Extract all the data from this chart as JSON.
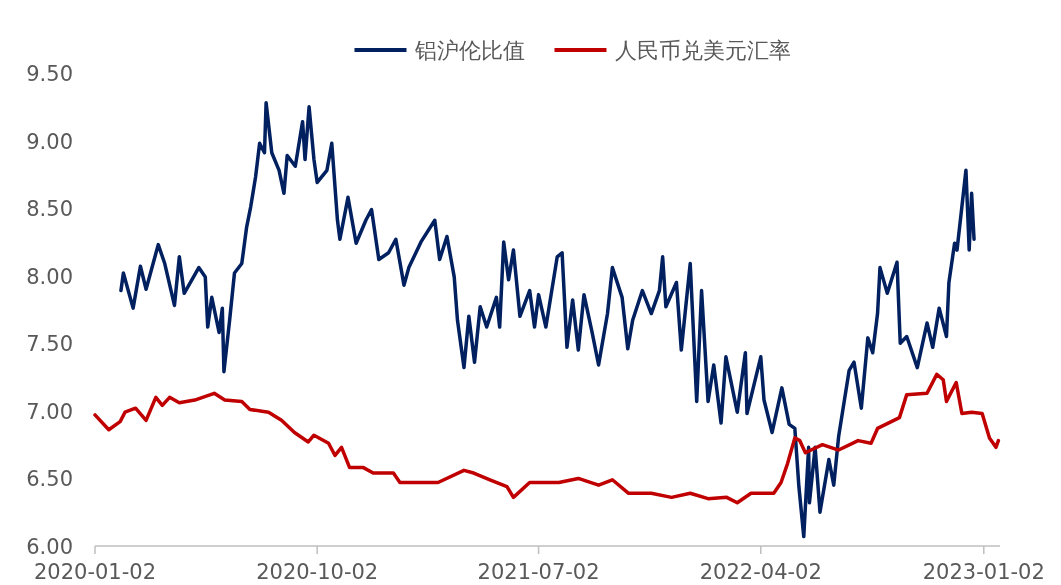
{
  "chart_data": {
    "type": "line",
    "legend": "top",
    "grid": false,
    "marker": "none",
    "line_style": "solid",
    "xlim": [
      "2020-01-02",
      "2023-01-22"
    ],
    "xticks": [
      {
        "value": "2020-01-02",
        "label": "2020-01-02"
      },
      {
        "value": "2020-10-02",
        "label": "2020-10-02"
      },
      {
        "value": "2021-07-02",
        "label": "2021-07-02"
      },
      {
        "value": "2022-04-02",
        "label": "2022-04-02"
      },
      {
        "value": "2023-01-02",
        "label": "2023-01-02"
      }
    ],
    "ylim": [
      6,
      9.5
    ],
    "yticks": [
      {
        "value": 6,
        "label": "6.00"
      },
      {
        "value": 6.5,
        "label": "6.50"
      },
      {
        "value": 7,
        "label": "7.00"
      },
      {
        "value": 7.5,
        "label": "7.50"
      },
      {
        "value": 8,
        "label": "8.00"
      },
      {
        "value": 8.5,
        "label": "8.50"
      },
      {
        "value": 9,
        "label": "9.00"
      },
      {
        "value": 9.5,
        "label": "9.50"
      }
    ],
    "series": [
      {
        "name": "铝沪伦比值",
        "color": "#002060",
        "x": [
          "2020-02-03",
          "2020-02-06",
          "2020-02-18",
          "2020-02-27",
          "2020-03-05",
          "2020-03-20",
          "2020-03-28",
          "2020-04-09",
          "2020-04-15",
          "2020-04-21",
          "2020-05-09",
          "2020-05-17",
          "2020-05-20",
          "2020-05-25",
          "2020-06-03",
          "2020-06-07",
          "2020-06-09",
          "2020-06-16",
          "2020-06-22",
          "2020-07-01",
          "2020-07-07",
          "2020-07-12",
          "2020-07-18",
          "2020-07-23",
          "2020-07-29",
          "2020-07-31",
          "2020-08-07",
          "2020-08-16",
          "2020-08-22",
          "2020-08-26",
          "2020-09-05",
          "2020-09-14",
          "2020-09-17",
          "2020-09-22",
          "2020-09-28",
          "2020-10-02",
          "2020-10-14",
          "2020-10-20",
          "2020-10-27",
          "2020-10-30",
          "2020-11-09",
          "2020-11-19",
          "2020-12-01",
          "2020-12-08",
          "2020-12-17",
          "2020-12-29",
          "2021-01-07",
          "2021-01-17",
          "2021-01-23",
          "2021-02-07",
          "2021-02-24",
          "2021-03-02",
          "2021-03-11",
          "2021-03-20",
          "2021-03-24",
          "2021-04-01",
          "2021-04-07",
          "2021-04-14",
          "2021-04-21",
          "2021-04-29",
          "2021-05-11",
          "2021-05-15",
          "2021-05-20",
          "2021-05-26",
          "2021-06-01",
          "2021-06-09",
          "2021-06-21",
          "2021-06-27",
          "2021-07-02",
          "2021-07-11",
          "2021-07-25",
          "2021-07-31",
          "2021-08-06",
          "2021-08-13",
          "2021-08-20",
          "2021-08-27",
          "2021-09-06",
          "2021-09-14",
          "2021-09-25",
          "2021-10-01",
          "2021-10-13",
          "2021-10-20",
          "2021-10-26",
          "2021-11-07",
          "2021-11-18",
          "2021-11-28",
          "2021-12-02",
          "2021-12-06",
          "2021-12-19",
          "2021-12-25",
          "2022-01-05",
          "2022-01-13",
          "2022-01-19",
          "2022-01-27",
          "2022-02-03",
          "2022-02-12",
          "2022-02-18",
          "2022-03-04",
          "2022-03-14",
          "2022-03-16",
          "2022-04-02",
          "2022-04-06",
          "2022-04-16",
          "2022-04-28",
          "2022-05-07",
          "2022-05-14",
          "2022-05-19",
          "2022-05-25",
          "2022-05-31",
          "2022-06-01",
          "2022-06-08",
          "2022-06-14",
          "2022-06-25",
          "2022-07-01",
          "2022-07-07",
          "2022-07-20",
          "2022-07-26",
          "2022-08-04",
          "2022-08-12",
          "2022-08-18",
          "2022-08-24",
          "2022-08-27",
          "2022-09-05",
          "2022-09-17",
          "2022-09-21",
          "2022-09-29",
          "2022-10-12",
          "2022-10-24",
          "2022-10-31",
          "2022-11-08",
          "2022-11-17",
          "2022-11-20",
          "2022-11-27",
          "2022-11-30",
          "2022-12-06",
          "2022-12-11",
          "2022-12-15",
          "2022-12-18",
          "2022-12-21"
        ],
        "values": [
          7.89,
          8.02,
          7.76,
          8.07,
          7.9,
          8.23,
          8.09,
          7.78,
          8.14,
          7.87,
          8.06,
          7.99,
          7.62,
          7.84,
          7.58,
          7.76,
          7.29,
          7.67,
          8.02,
          8.09,
          8.36,
          8.51,
          8.73,
          8.98,
          8.91,
          9.28,
          8.91,
          8.78,
          8.61,
          8.89,
          8.81,
          9.14,
          8.86,
          9.25,
          8.86,
          8.69,
          8.78,
          8.98,
          8.41,
          8.27,
          8.58,
          8.24,
          8.41,
          8.49,
          8.12,
          8.17,
          8.27,
          7.93,
          8.06,
          8.25,
          8.41,
          8.12,
          8.29,
          7.99,
          7.67,
          7.32,
          7.7,
          7.36,
          7.77,
          7.62,
          7.84,
          7.62,
          8.25,
          7.97,
          8.19,
          7.7,
          7.89,
          7.62,
          7.86,
          7.62,
          8.14,
          8.17,
          7.47,
          7.82,
          7.45,
          7.86,
          7.58,
          7.34,
          7.72,
          8.06,
          7.84,
          7.46,
          7.67,
          7.89,
          7.72,
          7.89,
          8.14,
          7.77,
          7.95,
          7.45,
          8.09,
          7.07,
          7.89,
          7.07,
          7.34,
          6.91,
          7.4,
          6.99,
          7.43,
          6.98,
          7.4,
          7.08,
          6.84,
          7.17,
          6.9,
          6.87,
          6.44,
          6.07,
          6.73,
          6.32,
          6.73,
          6.25,
          6.64,
          6.45,
          6.81,
          7.3,
          7.36,
          7.02,
          7.54,
          7.43,
          7.72,
          8.06,
          7.87,
          8.1,
          7.5,
          7.55,
          7.32,
          7.65,
          7.47,
          7.76,
          7.55,
          7.95,
          8.24,
          8.19,
          8.51,
          8.78,
          8.19,
          8.61,
          8.27
        ]
      },
      {
        "name": "人民币兑美元汇率",
        "color": "#c00000",
        "x": [
          "2020-01-02",
          "2020-01-19",
          "2020-02-02",
          "2020-02-08",
          "2020-02-21",
          "2020-03-05",
          "2020-03-17",
          "2020-03-25",
          "2020-04-03",
          "2020-04-15",
          "2020-05-04",
          "2020-05-28",
          "2020-06-10",
          "2020-07-01",
          "2020-07-11",
          "2020-08-03",
          "2020-08-19",
          "2020-09-04",
          "2020-09-21",
          "2020-09-28",
          "2020-10-16",
          "2020-10-24",
          "2020-11-01",
          "2020-11-11",
          "2020-11-28",
          "2020-12-10",
          "2021-01-04",
          "2021-01-12",
          "2021-02-07",
          "2021-02-28",
          "2021-04-01",
          "2021-04-13",
          "2021-05-03",
          "2021-05-24",
          "2021-06-01",
          "2021-06-21",
          "2021-07-27",
          "2021-08-20",
          "2021-09-14",
          "2021-10-01",
          "2021-10-21",
          "2021-11-18",
          "2021-12-13",
          "2022-01-05",
          "2022-01-27",
          "2022-02-19",
          "2022-03-04",
          "2022-03-21",
          "2022-04-18",
          "2022-04-27",
          "2022-05-05",
          "2022-05-14",
          "2022-05-20",
          "2022-05-27",
          "2022-06-17",
          "2022-07-07",
          "2022-07-31",
          "2022-08-16",
          "2022-08-24",
          "2022-09-10",
          "2022-09-20",
          "2022-09-29",
          "2022-10-24",
          "2022-11-05",
          "2022-11-13",
          "2022-11-17",
          "2022-11-29",
          "2022-12-06",
          "2022-12-18",
          "2022-12-31",
          "2023-01-09",
          "2023-01-17",
          "2023-01-20"
        ],
        "values": [
          6.97,
          6.86,
          6.92,
          6.99,
          7.02,
          6.93,
          7.1,
          7.04,
          7.1,
          7.06,
          7.08,
          7.13,
          7.08,
          7.07,
          7.01,
          6.99,
          6.93,
          6.84,
          6.77,
          6.82,
          6.76,
          6.67,
          6.73,
          6.58,
          6.58,
          6.54,
          6.54,
          6.47,
          6.47,
          6.47,
          6.56,
          6.54,
          6.49,
          6.44,
          6.36,
          6.47,
          6.47,
          6.5,
          6.45,
          6.49,
          6.39,
          6.39,
          6.36,
          6.39,
          6.35,
          6.36,
          6.32,
          6.39,
          6.39,
          6.47,
          6.61,
          6.8,
          6.78,
          6.69,
          6.75,
          6.71,
          6.78,
          6.76,
          6.87,
          6.92,
          6.95,
          7.12,
          7.13,
          7.27,
          7.23,
          7.07,
          7.21,
          6.98,
          6.99,
          6.98,
          6.8,
          6.73,
          6.78
        ]
      }
    ]
  }
}
